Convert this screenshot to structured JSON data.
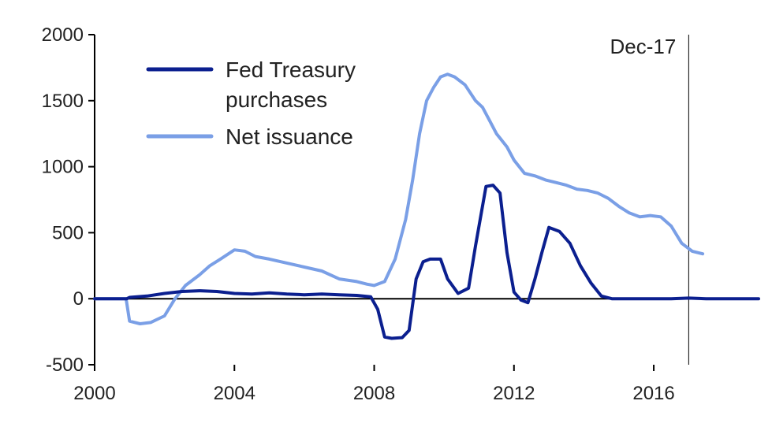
{
  "chart_data": {
    "type": "line",
    "xlim": [
      2000,
      2019
    ],
    "ylim": [
      -500,
      2000
    ],
    "x_ticks": [
      "2000",
      "2004",
      "2008",
      "2012",
      "2016"
    ],
    "y_ticks": [
      "2000",
      "1500",
      "1000",
      "500",
      "0",
      "-500"
    ],
    "grid": false,
    "legend_position": "top-left",
    "annotation": {
      "label": "Dec-17",
      "x": 2017.0
    },
    "series": [
      {
        "name": "Fed Treasury purchases",
        "color": "#0b1f8f",
        "legend_lines": [
          "Fed Treasury",
          "purchases"
        ],
        "x": [
          2000.0,
          2000.92,
          2001.0,
          2001.5,
          2002.0,
          2002.5,
          2003.0,
          2003.5,
          2004.0,
          2004.5,
          2005.0,
          2005.5,
          2006.0,
          2006.5,
          2007.0,
          2007.5,
          2007.9,
          2008.1,
          2008.3,
          2008.5,
          2008.8,
          2009.0,
          2009.2,
          2009.4,
          2009.6,
          2009.9,
          2010.1,
          2010.4,
          2010.7,
          2010.9,
          2011.2,
          2011.4,
          2011.6,
          2011.8,
          2012.0,
          2012.2,
          2012.4,
          2012.6,
          2012.8,
          2013.0,
          2013.3,
          2013.6,
          2013.9,
          2014.2,
          2014.5,
          2014.8,
          2015.1,
          2015.4,
          2015.7,
          2016.0,
          2016.5,
          2017.0,
          2017.5,
          2018.0,
          2018.5,
          2019.0
        ],
        "y": [
          0,
          0,
          10,
          20,
          40,
          55,
          60,
          55,
          40,
          35,
          45,
          35,
          30,
          35,
          30,
          25,
          15,
          -80,
          -290,
          -300,
          -295,
          -240,
          150,
          280,
          300,
          300,
          150,
          40,
          80,
          400,
          850,
          860,
          800,
          350,
          50,
          -10,
          -30,
          150,
          350,
          540,
          510,
          420,
          250,
          120,
          20,
          0,
          0,
          0,
          0,
          0,
          0,
          5,
          0,
          0,
          0,
          0
        ]
      },
      {
        "name": "Net issuance",
        "color": "#7a9fe6",
        "legend_lines": [
          "Net issuance"
        ],
        "x": [
          2000.0,
          2000.9,
          2001.0,
          2001.3,
          2001.6,
          2002.0,
          2002.3,
          2002.6,
          2003.0,
          2003.3,
          2003.6,
          2004.0,
          2004.3,
          2004.6,
          2005.0,
          2005.5,
          2006.0,
          2006.5,
          2007.0,
          2007.5,
          2007.8,
          2008.0,
          2008.3,
          2008.6,
          2008.9,
          2009.1,
          2009.3,
          2009.5,
          2009.7,
          2009.9,
          2010.1,
          2010.3,
          2010.6,
          2010.9,
          2011.1,
          2011.3,
          2011.5,
          2011.8,
          2012.0,
          2012.3,
          2012.6,
          2012.9,
          2013.2,
          2013.5,
          2013.8,
          2014.1,
          2014.4,
          2014.7,
          2015.0,
          2015.3,
          2015.6,
          2015.9,
          2016.2,
          2016.5,
          2016.8,
          2017.1,
          2017.4
        ],
        "y": [
          0,
          0,
          -170,
          -190,
          -180,
          -130,
          0,
          100,
          180,
          250,
          300,
          370,
          360,
          320,
          300,
          270,
          240,
          210,
          150,
          130,
          110,
          100,
          130,
          300,
          600,
          900,
          1250,
          1500,
          1600,
          1680,
          1700,
          1680,
          1620,
          1500,
          1450,
          1350,
          1250,
          1150,
          1050,
          950,
          930,
          900,
          880,
          860,
          830,
          820,
          800,
          760,
          700,
          650,
          620,
          630,
          620,
          550,
          420,
          360,
          340
        ]
      }
    ]
  }
}
